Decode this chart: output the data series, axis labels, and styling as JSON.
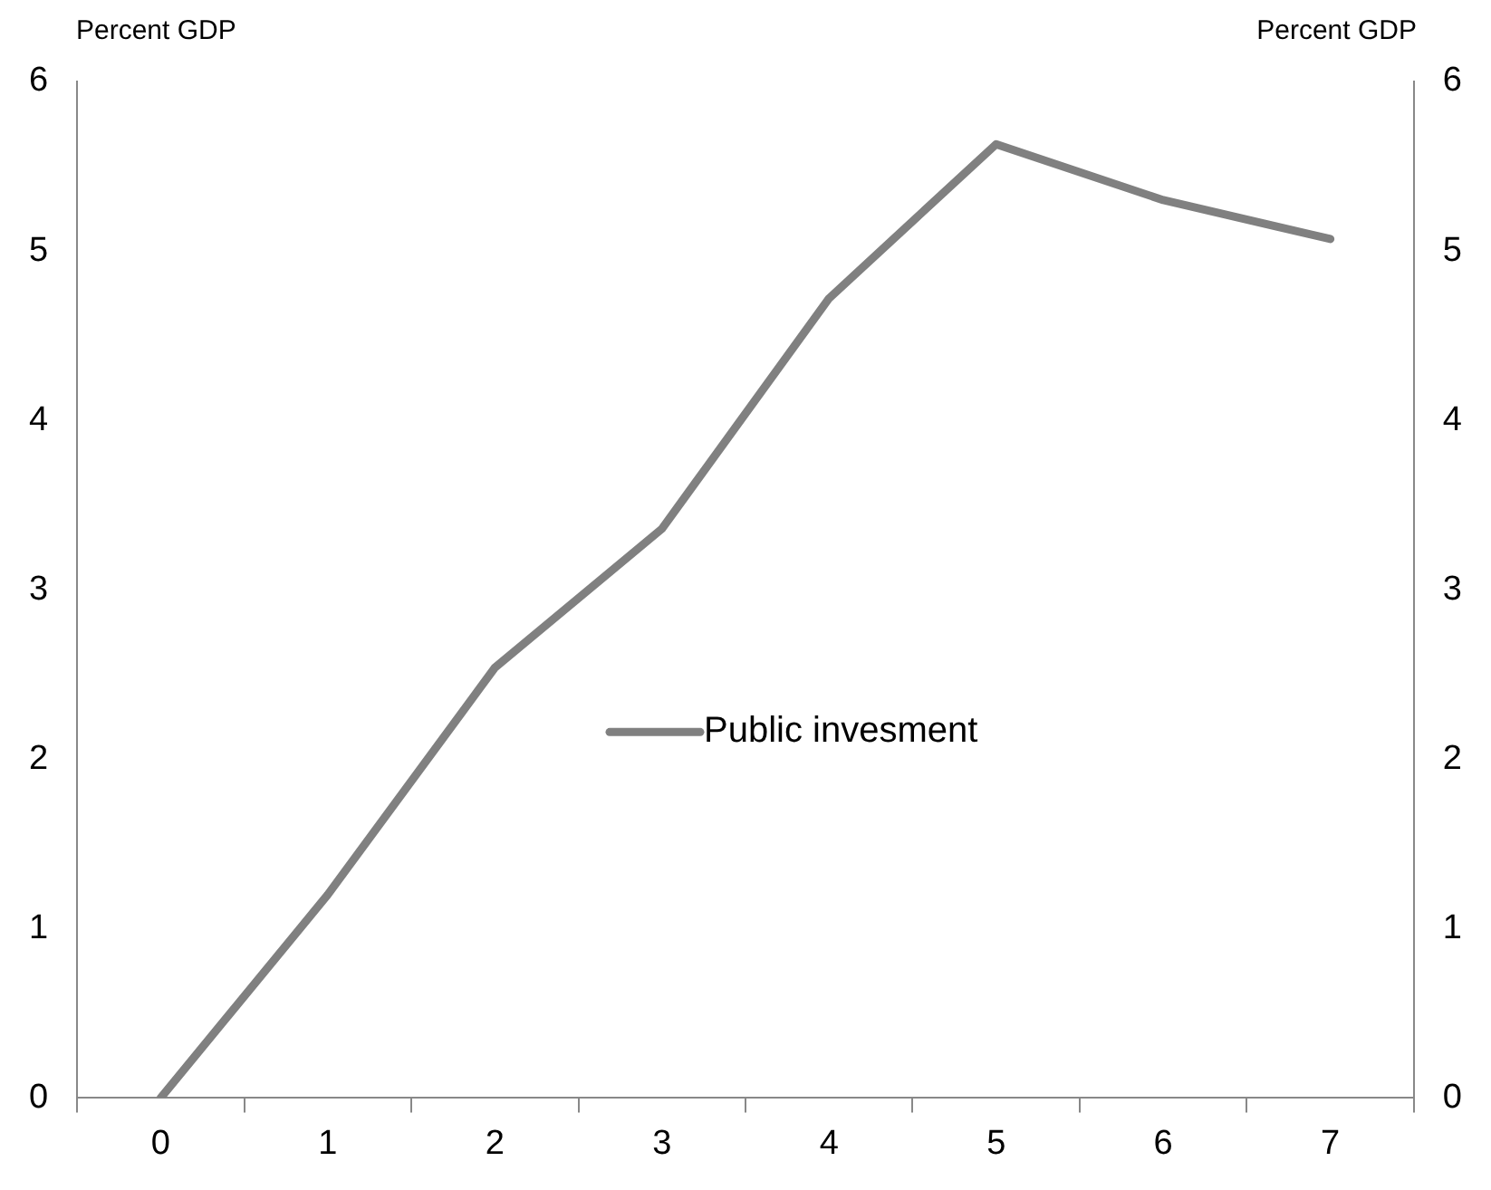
{
  "chart_data": {
    "type": "line",
    "ylabel": "Percent GDP",
    "y2label": "Percent GDP",
    "categories": [
      "0",
      "1",
      "2",
      "3",
      "4",
      "5",
      "6",
      "7"
    ],
    "series": [
      {
        "name": "Public invesment",
        "color": "#808080",
        "values": [
          0,
          1.2,
          2.54,
          3.36,
          4.72,
          5.63,
          5.3,
          5.07
        ]
      }
    ],
    "ylim": [
      0,
      6
    ],
    "yticks": [
      0,
      1,
      2,
      3,
      4,
      5,
      6
    ],
    "y2lim": [
      0,
      6
    ],
    "y2ticks": [
      0,
      1,
      2,
      3,
      4,
      5,
      6
    ],
    "grid": false,
    "legend": "center",
    "marker": "none",
    "line_style": "solid"
  }
}
